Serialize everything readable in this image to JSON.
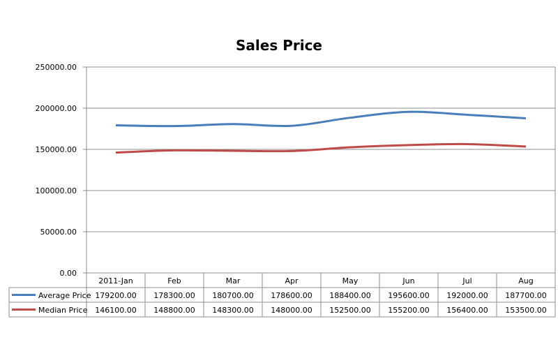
{
  "chart_data": {
    "type": "line",
    "title": "Sales Price",
    "xlabel": "",
    "ylabel": "",
    "categories": [
      "2011-Jan",
      "Feb",
      "Mar",
      "Apr",
      "May",
      "Jun",
      "Jul",
      "Aug"
    ],
    "series": [
      {
        "name": "Average Price",
        "color": "#4a7ebb",
        "values": [
          179200,
          178300,
          180700,
          178600,
          188400,
          195600,
          192000,
          187700
        ],
        "labels": [
          "179200.00",
          "178300.00",
          "180700.00",
          "178600.00",
          "188400.00",
          "195600.00",
          "192000.00",
          "187700.00"
        ]
      },
      {
        "name": "Median Price",
        "color": "#be4b48",
        "values": [
          146100,
          148800,
          148300,
          148000,
          152500,
          155200,
          156400,
          153500
        ],
        "labels": [
          "146100.00",
          "148800.00",
          "148300.00",
          "148000.00",
          "152500.00",
          "155200.00",
          "156400.00",
          "153500.00"
        ]
      }
    ],
    "ylim": [
      0,
      250000
    ],
    "yticks": [
      0,
      50000,
      100000,
      150000,
      200000,
      250000
    ],
    "ytick_labels": [
      "0.00",
      "50000.00",
      "100000.00",
      "150000.00",
      "200000.00",
      "250000.00"
    ],
    "grid": true,
    "legend": "data-table"
  }
}
